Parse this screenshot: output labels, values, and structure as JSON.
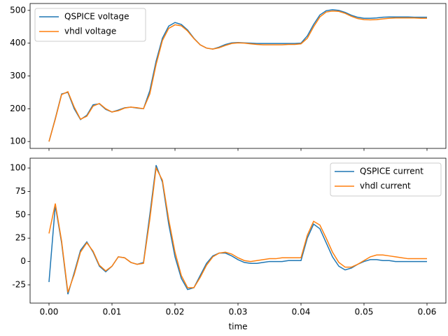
{
  "chart_data": [
    {
      "type": "line",
      "x": [
        0,
        0.001,
        0.002,
        0.003,
        0.004,
        0.005,
        0.006,
        0.007,
        0.008,
        0.009,
        0.01,
        0.011,
        0.012,
        0.013,
        0.014,
        0.015,
        0.016,
        0.017,
        0.018,
        0.019,
        0.02,
        0.021,
        0.022,
        0.023,
        0.024,
        0.025,
        0.026,
        0.027,
        0.028,
        0.029,
        0.03,
        0.031,
        0.032,
        0.033,
        0.034,
        0.035,
        0.036,
        0.037,
        0.038,
        0.039,
        0.04,
        0.041,
        0.042,
        0.043,
        0.044,
        0.045,
        0.046,
        0.047,
        0.048,
        0.049,
        0.05,
        0.051,
        0.052,
        0.053,
        0.054,
        0.055,
        0.056,
        0.057,
        0.058,
        0.059,
        0.06
      ],
      "series": [
        {
          "name": "QSPICE voltage",
          "color": "#1f77b4",
          "values": [
            100,
            170,
            245,
            250,
            200,
            167,
            180,
            212,
            215,
            198,
            190,
            196,
            203,
            205,
            202,
            200,
            255,
            345,
            415,
            452,
            463,
            457,
            440,
            415,
            395,
            385,
            382,
            388,
            396,
            401,
            402,
            401,
            400,
            399,
            399,
            399,
            399,
            399,
            399,
            399,
            400,
            422,
            457,
            486,
            499,
            502,
            500,
            494,
            485,
            479,
            476,
            476,
            477,
            479,
            480,
            480,
            480,
            480,
            479,
            479,
            479
          ]
        },
        {
          "name": "vhdl voltage",
          "color": "#ff7f0e",
          "values": [
            100,
            168,
            243,
            252,
            205,
            168,
            177,
            208,
            216,
            200,
            190,
            194,
            202,
            205,
            203,
            200,
            245,
            335,
            408,
            445,
            456,
            453,
            437,
            414,
            395,
            385,
            382,
            386,
            393,
            399,
            401,
            400,
            398,
            396,
            395,
            395,
            395,
            395,
            396,
            396,
            398,
            415,
            450,
            480,
            495,
            498,
            497,
            491,
            482,
            475,
            472,
            471,
            472,
            474,
            476,
            477,
            477,
            477,
            477,
            476,
            476
          ]
        }
      ],
      "xlim": [
        -0.003,
        0.063
      ],
      "xticks": [
        0,
        0.01,
        0.02,
        0.03,
        0.04,
        0.05,
        0.06
      ],
      "ylim": [
        79,
        521
      ],
      "yticks": [
        100,
        200,
        300,
        400,
        500
      ],
      "legend": "upper left"
    },
    {
      "type": "line",
      "x": [
        0,
        0.001,
        0.002,
        0.003,
        0.004,
        0.005,
        0.006,
        0.007,
        0.008,
        0.009,
        0.01,
        0.011,
        0.012,
        0.013,
        0.014,
        0.015,
        0.016,
        0.017,
        0.018,
        0.019,
        0.02,
        0.021,
        0.022,
        0.023,
        0.024,
        0.025,
        0.026,
        0.027,
        0.028,
        0.029,
        0.03,
        0.031,
        0.032,
        0.033,
        0.034,
        0.035,
        0.036,
        0.037,
        0.038,
        0.039,
        0.04,
        0.041,
        0.042,
        0.043,
        0.044,
        0.045,
        0.046,
        0.047,
        0.048,
        0.049,
        0.05,
        0.051,
        0.052,
        0.053,
        0.054,
        0.055,
        0.056,
        0.057,
        0.058,
        0.059,
        0.06
      ],
      "series": [
        {
          "name": "QSPICE current",
          "color": "#1f77b4",
          "values": [
            -22,
            60,
            20,
            -35,
            -12,
            12,
            21,
            10,
            -5,
            -11,
            -5,
            5,
            4,
            -1,
            -3,
            -1,
            50,
            103,
            85,
            40,
            5,
            -18,
            -30,
            -28,
            -15,
            -2,
            6,
            9,
            9,
            6,
            2,
            -1,
            -2,
            -2,
            -1,
            0,
            0,
            0,
            1,
            1,
            1,
            25,
            40,
            35,
            20,
            5,
            -5,
            -9,
            -7,
            -3,
            0,
            2,
            2,
            1,
            1,
            0,
            0,
            0,
            0,
            0,
            0
          ]
        },
        {
          "name": "vhdl current",
          "color": "#ff7f0e",
          "values": [
            30,
            62,
            22,
            -33,
            -14,
            10,
            20,
            11,
            -4,
            -10,
            -5,
            5,
            4,
            -1,
            -3,
            -2,
            45,
            100,
            87,
            45,
            10,
            -15,
            -28,
            -28,
            -17,
            -4,
            5,
            9,
            10,
            8,
            4,
            1,
            0,
            1,
            2,
            3,
            3,
            4,
            4,
            4,
            4,
            28,
            43,
            39,
            25,
            10,
            -1,
            -6,
            -6,
            -3,
            1,
            5,
            7,
            7,
            6,
            5,
            4,
            3,
            3,
            3,
            3
          ]
        }
      ],
      "xlabel": "time",
      "xlim": [
        -0.003,
        0.063
      ],
      "xticks": [
        {
          "value": 0,
          "label": "0.00"
        },
        {
          "value": 0.01,
          "label": "0.01"
        },
        {
          "value": 0.02,
          "label": "0.02"
        },
        {
          "value": 0.03,
          "label": "0.03"
        },
        {
          "value": 0.04,
          "label": "0.04"
        },
        {
          "value": 0.05,
          "label": "0.05"
        },
        {
          "value": 0.06,
          "label": "0.06"
        }
      ],
      "ylim": [
        -44.5,
        110.5
      ],
      "yticks": [
        -25,
        0,
        25,
        50,
        75,
        100
      ],
      "legend": "upper right"
    }
  ]
}
